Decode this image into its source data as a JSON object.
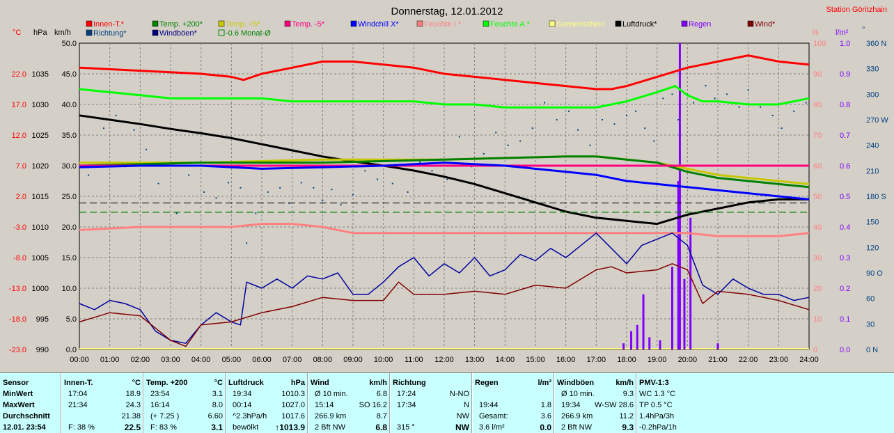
{
  "title": "Donnerstag, 12.01.2012",
  "station": "Station Göritzhain",
  "colors": {
    "bg": "#d4d0c8",
    "grid": "#000000",
    "panel": "#c8ffff"
  },
  "legend": [
    {
      "label": "Innen-T.*",
      "color": "#ff0000"
    },
    {
      "label": "Temp. +200*",
      "color": "#008000"
    },
    {
      "label": "Temp. +5*",
      "color": "#c8c800"
    },
    {
      "label": "Temp. -5*",
      "color": "#ff0080"
    },
    {
      "label": "Windchill X*",
      "color": "#0000ff"
    },
    {
      "label": "Feuchte I.*",
      "color": "#ff8080"
    },
    {
      "label": "Feuchte A.*",
      "color": "#00ff00"
    },
    {
      "label": "Sonnenschein",
      "color": "#ffff80"
    },
    {
      "label": "Luftdruck*",
      "color": "#000000"
    },
    {
      "label": "Regen",
      "color": "#8000ff"
    },
    {
      "label": "Wind*",
      "color": "#800000"
    },
    {
      "label": "Richtung*",
      "color": "#004080"
    },
    {
      "label": "Windböen*",
      "color": "#000080"
    },
    {
      "label": "-0.6 Monat-Ø",
      "color": "#008000"
    }
  ],
  "axes_units": {
    "temp": "°C",
    "hpa": "hPa",
    "kmh": "km/h",
    "pct": "%",
    "rain": "l/m²",
    "dir": "°"
  },
  "chart_data": {
    "type": "line",
    "title": "Donnerstag, 12.01.2012",
    "x_ticks": [
      "00:00",
      "01:00",
      "02:00",
      "03:00",
      "04:00",
      "05:00",
      "06:00",
      "07:00",
      "08:00",
      "09:00",
      "10:00",
      "11:00",
      "12:00",
      "13:00",
      "14:00",
      "15:00",
      "16:00",
      "17:00",
      "18:00",
      "19:00",
      "20:00",
      "21:00",
      "22:00",
      "23:00",
      "24:00"
    ],
    "axes": {
      "temp": {
        "unit": "°C",
        "ticks": [
          "22.0",
          "17.0",
          "12.0",
          "7.0",
          "2.0",
          "-3.0",
          "-8.0",
          "-13.0",
          "-18.0",
          "-23.0"
        ],
        "range": [
          -23,
          27
        ]
      },
      "hpa": {
        "unit": "hPa",
        "ticks": [
          "1035",
          "1030",
          "1025",
          "1020",
          "1015",
          "1010",
          "1005",
          "1000",
          "995",
          "990"
        ],
        "range": [
          990,
          1040
        ]
      },
      "kmh": {
        "unit": "km/h",
        "ticks": [
          "50.0",
          "45.0",
          "40.0",
          "35.0",
          "30.0",
          "25.0",
          "20.0",
          "15.0",
          "10.0",
          "5.0",
          "0.0"
        ],
        "range": [
          0,
          50
        ]
      },
      "pct": {
        "unit": "%",
        "ticks": [
          "100",
          "90",
          "80",
          "70",
          "60",
          "50",
          "40",
          "30",
          "20",
          "10",
          "0"
        ],
        "range": [
          0,
          100
        ]
      },
      "rain": {
        "unit": "l/m²",
        "ticks": [
          "1.0",
          "0.9",
          "0.8",
          "0.7",
          "0.6",
          "0.5",
          "0.4",
          "0.3",
          "0.2",
          "0.1",
          "0.0"
        ],
        "range": [
          0,
          1
        ]
      },
      "dir": {
        "unit": "°",
        "ticks": [
          "360 N",
          "330",
          "300",
          "270 W",
          "240",
          "210",
          "180 S",
          "150",
          "120",
          "90 O",
          "60",
          "30",
          "0 N"
        ],
        "range": [
          0,
          360
        ]
      }
    },
    "series": [
      {
        "name": "Innen-T.*",
        "axis": "pct",
        "color": "#ff0000",
        "x": [
          0,
          2,
          4,
          5,
          5.4,
          6,
          7,
          8,
          9,
          10,
          11,
          12,
          13,
          14,
          15,
          16,
          17,
          17.5,
          18,
          19,
          20,
          21,
          22,
          23,
          24
        ],
        "y": [
          92,
          91,
          90,
          89,
          88,
          90,
          92,
          94,
          94,
          93,
          92,
          90,
          89,
          88,
          87,
          86,
          85,
          85,
          86,
          89,
          92,
          94,
          96,
          94,
          93
        ]
      },
      {
        "name": "Feuchte A.*",
        "axis": "pct",
        "color": "#00ff00",
        "x": [
          0,
          1,
          2,
          3,
          4,
          5,
          6,
          7,
          8,
          9,
          10,
          11,
          12,
          13,
          14,
          15,
          16,
          17,
          18,
          19,
          19.6,
          20,
          20.5,
          21,
          22,
          23,
          24
        ],
        "y": [
          85,
          84,
          83,
          82,
          82,
          82,
          82,
          81,
          81,
          81,
          81,
          81,
          80,
          80,
          79,
          79,
          79,
          79,
          81,
          84,
          86,
          83,
          81,
          81,
          80,
          80,
          82
        ]
      },
      {
        "name": "Luftdruck*",
        "axis": "hpa",
        "color": "#000000",
        "x": [
          0,
          1,
          2,
          3,
          4,
          5,
          6,
          7,
          8,
          9,
          10,
          11,
          12,
          13,
          14,
          15,
          16,
          17,
          18,
          19,
          20,
          21,
          22,
          23,
          24
        ],
        "y": [
          1028.2,
          1027.5,
          1026.8,
          1026,
          1025.3,
          1024.5,
          1023.5,
          1022.5,
          1021.5,
          1020.7,
          1020,
          1019.2,
          1018.2,
          1017,
          1015.5,
          1014,
          1012.5,
          1011.5,
          1011,
          1010.5,
          1012,
          1013,
          1014,
          1014.5,
          1014.5
        ]
      },
      {
        "name": "Temp. +5*",
        "axis": "pct",
        "color": "#c8c800",
        "x": [
          0,
          4,
          8,
          12,
          16,
          17,
          18,
          19,
          20,
          21,
          22,
          23,
          24
        ],
        "y": [
          61,
          61,
          62,
          62,
          63,
          63,
          62,
          61,
          59,
          57,
          56,
          55,
          54
        ]
      },
      {
        "name": "Temp. +200*",
        "axis": "pct",
        "color": "#008000",
        "x": [
          0,
          4,
          8,
          12,
          16,
          17,
          18,
          19,
          20,
          21,
          22,
          23,
          24
        ],
        "y": [
          60,
          61,
          61,
          62,
          63,
          63,
          62,
          61,
          58,
          56,
          55,
          54,
          53
        ]
      },
      {
        "name": "Temp. -5*",
        "axis": "pct",
        "color": "#ff0080",
        "x": [
          0,
          4,
          8,
          12,
          16,
          20,
          24
        ],
        "y": [
          60,
          60,
          60,
          60,
          60,
          60,
          60
        ]
      },
      {
        "name": "Windchill X*",
        "axis": "pct",
        "color": "#0000ff",
        "x": [
          0,
          2,
          4,
          6,
          8,
          10,
          12,
          14,
          16,
          17,
          18,
          19,
          20,
          21,
          22,
          23,
          24
        ],
        "y": [
          59.5,
          60,
          60,
          59,
          59.5,
          60,
          61,
          60,
          58,
          57,
          55,
          54,
          53,
          52,
          51,
          50,
          49
        ]
      },
      {
        "name": "Feuchte I.*",
        "axis": "pct",
        "color": "#ff8080",
        "x": [
          0,
          2,
          4,
          5,
          6,
          7,
          8,
          9,
          10,
          12,
          14,
          16,
          18,
          20,
          21,
          22,
          23,
          24
        ],
        "y": [
          39,
          40,
          40,
          40,
          41,
          41,
          40,
          38,
          38,
          38,
          38,
          38,
          38,
          38,
          37,
          37,
          37,
          38
        ]
      },
      {
        "name": "Windböen*",
        "axis": "kmh",
        "color": "#0000a0",
        "x": [
          0,
          0.5,
          1,
          1.5,
          2,
          2.5,
          3,
          3.5,
          4,
          4.5,
          5,
          5.3,
          5.5,
          6,
          6.5,
          7,
          7.5,
          8,
          8.5,
          9,
          9.5,
          10,
          10.5,
          11,
          11.5,
          12,
          12.5,
          13,
          13.5,
          14,
          14.5,
          15,
          15.5,
          16,
          16.5,
          17,
          17.5,
          18,
          18.5,
          19,
          19.5,
          20,
          20.5,
          21,
          21.5,
          22,
          22.5,
          23,
          23.5,
          24
        ],
        "y": [
          7.5,
          6.5,
          8,
          7.5,
          6.5,
          3,
          1.5,
          1,
          4,
          6,
          4.5,
          4,
          11,
          10,
          11.5,
          10,
          12,
          11.5,
          12.5,
          9,
          9,
          11,
          13.5,
          15,
          12,
          14,
          12.5,
          15,
          12,
          13,
          15.5,
          14.5,
          16.5,
          15,
          17,
          19,
          16.5,
          14,
          17,
          18,
          19,
          17,
          10.5,
          9,
          11.5,
          10,
          9,
          9,
          8,
          8.5
        ]
      },
      {
        "name": "Wind*",
        "axis": "kmh",
        "color": "#800000",
        "x": [
          0,
          1,
          2,
          3,
          3.5,
          4,
          5,
          6,
          7,
          8,
          9,
          10,
          10.5,
          11,
          12,
          13,
          14,
          15,
          16,
          17,
          17.5,
          18,
          19,
          19.5,
          20,
          20.5,
          21,
          22,
          23,
          24
        ],
        "y": [
          4.5,
          6,
          5.5,
          1.5,
          0.5,
          4,
          4.5,
          6,
          7,
          8.5,
          8,
          8,
          11,
          9,
          9,
          9.5,
          9,
          10.5,
          10,
          13,
          13.5,
          12.5,
          13,
          14,
          13,
          7.5,
          9.5,
          9,
          8,
          6.5
        ]
      },
      {
        "name": "-0.6 Monat-Ø",
        "axis": "temp",
        "color": "#008000",
        "x": [
          0,
          24
        ],
        "y": [
          -0.6,
          -0.6
        ]
      }
    ],
    "rain_bars": {
      "x": [
        17.9,
        18.15,
        18.35,
        18.55,
        18.75,
        19.1,
        19.5,
        19.7,
        19.75,
        19.9,
        20.1,
        21
      ],
      "y": [
        0.02,
        0.06,
        0.08,
        0.18,
        0.04,
        0.03,
        0.27,
        0.55,
        1.0,
        0.23,
        0.43,
        0.02
      ]
    },
    "direction_dots": {
      "x": [
        0.3,
        0.8,
        1.2,
        1.5,
        1.8,
        2.2,
        2.6,
        3.2,
        3.6,
        4.1,
        4.5,
        4.9,
        5.3,
        5.5,
        5.8,
        6.2,
        6.6,
        6.9,
        7.3,
        7.7,
        8.0,
        8.3,
        8.6,
        9.0,
        9.4,
        9.8,
        10.3,
        10.8,
        11.2,
        11.6,
        12.1,
        12.5,
        12.9,
        13.3,
        13.7,
        14.1,
        14.5,
        14.9,
        15.3,
        15.7,
        16.1,
        16.4,
        16.8,
        17.2,
        17.6,
        18.0,
        18.3,
        18.6,
        18.9,
        19.2,
        19.5,
        19.7,
        20.0,
        20.2,
        20.6,
        20.9,
        21.3,
        21.7,
        22.0,
        22.4,
        22.8,
        23.1,
        23.5,
        23.9
      ],
      "y": [
        205,
        260,
        275,
        215,
        258,
        235,
        195,
        160,
        205,
        185,
        178,
        196,
        190,
        125,
        160,
        185,
        190,
        172,
        196,
        190,
        175,
        188,
        170,
        182,
        210,
        200,
        195,
        185,
        220,
        210,
        200,
        250,
        215,
        230,
        255,
        240,
        245,
        260,
        290,
        270,
        280,
        258,
        240,
        270,
        265,
        275,
        280,
        260,
        245,
        295,
        300,
        270,
        300,
        290,
        310,
        295,
        300,
        285,
        305,
        285,
        275,
        260,
        280,
        290
      ]
    },
    "stats": {
      "headers": [
        "Sensor",
        "Innen-T.",
        "°C",
        "Temp. +200",
        "°C",
        "Luftdruck",
        "hPa",
        "Wind",
        "km/h",
        "Richtung",
        "Regen",
        "l/m²",
        "Windböen",
        "km/h",
        "PMV-1:3"
      ],
      "rows": [
        {
          "label": "MinWert",
          "innen": [
            "17:04",
            "18.9"
          ],
          "temp": [
            "23:54",
            "3.1"
          ],
          "druck": [
            "19:34",
            "1010.3"
          ],
          "wind": [
            "Ø 10 min.",
            "6.8"
          ],
          "richt": [
            "17:24",
            "N-NO"
          ],
          "regen": [
            "",
            ""
          ],
          "boeen": [
            "Ø 10 min.",
            "9.3"
          ],
          "pmv": "WC 1.3 °C"
        },
        {
          "label": "MaxWert",
          "innen": [
            "21:34",
            "24.3"
          ],
          "temp": [
            "16:14",
            "8.0"
          ],
          "druck": [
            "00:14",
            "1027.0"
          ],
          "wind": [
            "15:14",
            "SO 16.2"
          ],
          "richt": [
            "17:34",
            "N"
          ],
          "regen": [
            "19:44",
            "1.8"
          ],
          "boeen": [
            "19:34",
            "W-SW 28.6"
          ],
          "pmv": "TP 0.5 °C"
        },
        {
          "label": "Durchschnitt",
          "innen": [
            "",
            "21.38"
          ],
          "temp": [
            "(+ 7.25 )",
            "6.60"
          ],
          "druck": [
            "^2.3hPa/h",
            "1017.6"
          ],
          "wind": [
            "266.9 km",
            "8.7"
          ],
          "richt": [
            "",
            "NW"
          ],
          "regen": [
            "Gesamt:",
            "3.6"
          ],
          "boeen": [
            "266.9 km",
            "11.2"
          ],
          "pmv": "1.4hPa/3h"
        },
        {
          "label": "12.01. 23:54",
          "innen": [
            "F: 38 %",
            "22.5"
          ],
          "temp": [
            "F: 83 %",
            "3.1"
          ],
          "druck": [
            "bewölkt",
            "↑1013.9"
          ],
          "wind": [
            "2 Bft NW",
            "6.8"
          ],
          "richt": [
            "315 °",
            "NW"
          ],
          "regen": [
            "3.6 l/m²",
            "0.0"
          ],
          "boeen": [
            "2 Bft NW",
            "9.3"
          ],
          "pmv": "-0.2hPa/1h"
        }
      ]
    }
  }
}
